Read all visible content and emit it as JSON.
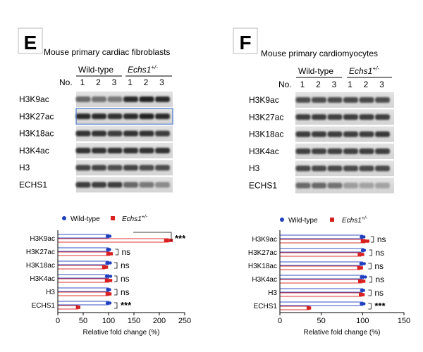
{
  "panel_e": {
    "letter": "E",
    "title": "Mouse primary cardiac fibroblasts",
    "group_wt": "Wild-type",
    "group_ko": "Echs1",
    "group_ko_sup": "+/-",
    "no_label": "No.",
    "lane_numbers": [
      "1",
      "2",
      "3",
      "1",
      "2",
      "3"
    ],
    "blots": [
      "H3K9ac",
      "H3K27ac",
      "H3K18ac",
      "H3K4ac",
      "H3",
      "ECHS1"
    ],
    "legend_wt": "Wild-type",
    "legend_ko": "Echs1",
    "legend_ko_sup": "+/-"
  },
  "panel_f": {
    "letter": "F",
    "title": "Mouse primary cardiomyocytes",
    "group_wt": "Wild-type",
    "group_ko": "Echs1",
    "group_ko_sup": "+/-",
    "no_label": "No.",
    "lane_numbers": [
      "1",
      "2",
      "3",
      "1",
      "2",
      "3"
    ],
    "blots": [
      "H3K9ac",
      "H3K27ac",
      "H3K18ac",
      "H3K4ac",
      "H3",
      "ECHS1"
    ],
    "legend_wt": "Wild-type",
    "legend_ko": "Echs1",
    "legend_ko_sup": "+/-"
  },
  "colors": {
    "wild_type": "#1f3fbf",
    "echs1": "#d92020"
  },
  "chart_data": [
    {
      "type": "bar",
      "orientation": "horizontal",
      "categories": [
        "H3K9ac",
        "H3K27ac",
        "H3K18ac",
        "H3K4ac",
        "H3",
        "ECHS1"
      ],
      "series": [
        {
          "name": "Wild-type",
          "values": [
            100,
            100,
            100,
            100,
            100,
            100
          ]
        },
        {
          "name": "Echs1+/-",
          "values": [
            218,
            102,
            93,
            100,
            100,
            40
          ]
        }
      ],
      "significance": [
        "***",
        "ns",
        "ns",
        "ns",
        "ns",
        "***"
      ],
      "xlabel": "Relative fold change (%)",
      "xlim": [
        0,
        250
      ],
      "xticks": [
        "0",
        "50",
        "100",
        "150",
        "200",
        "250"
      ]
    },
    {
      "type": "bar",
      "orientation": "horizontal",
      "categories": [
        "H3K9ac",
        "H3K27ac",
        "H3K18ac",
        "H3K4ac",
        "H3",
        "ECHS1"
      ],
      "series": [
        {
          "name": "Wild-type",
          "values": [
            100,
            101,
            100,
            101,
            100,
            100
          ]
        },
        {
          "name": "Echs1+/-",
          "values": [
            103,
            98,
            97,
            99,
            99,
            35
          ]
        }
      ],
      "significance": [
        "ns",
        "ns",
        "ns",
        "ns",
        "ns",
        "***"
      ],
      "xlabel": "Relative fold change (%)",
      "xlim": [
        0,
        150
      ],
      "xticks": [
        "0",
        "50",
        "100",
        "150"
      ]
    }
  ]
}
